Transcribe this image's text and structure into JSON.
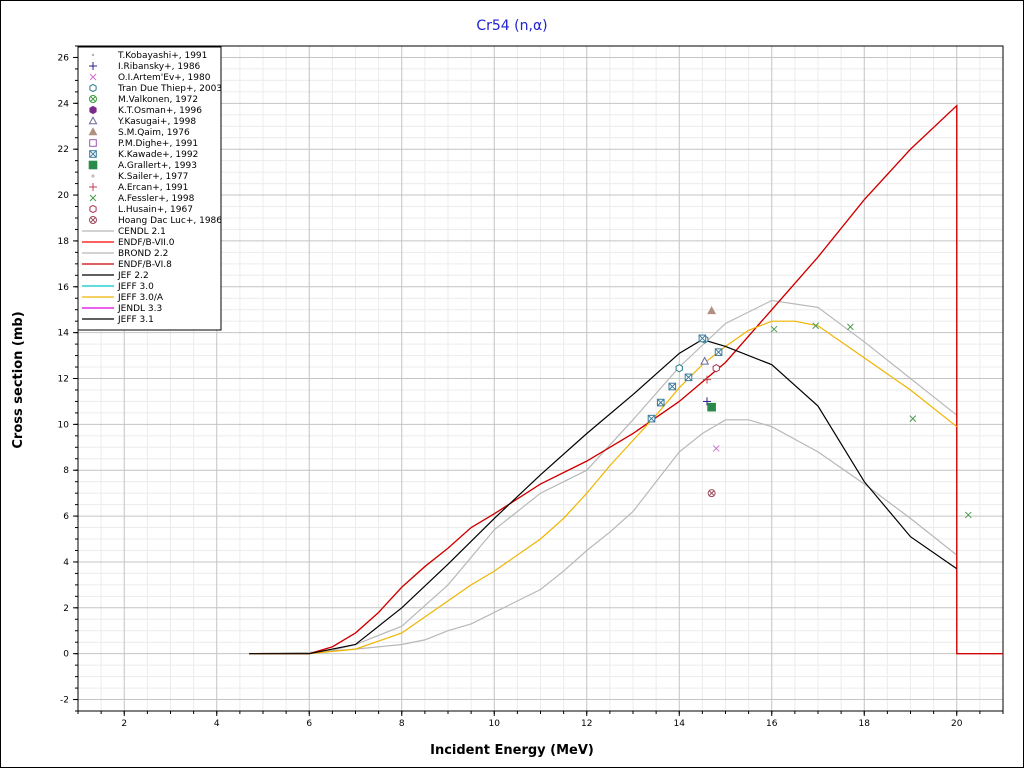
{
  "chart_data": {
    "type": "line",
    "title": "Cr54 (n,α)",
    "xlabel": "Incident Energy (MeV)",
    "ylabel": "Cross section (mb)",
    "xlim": [
      1,
      21
    ],
    "ylim": [
      -2.5,
      26.5
    ],
    "xticks": [
      2,
      4,
      6,
      8,
      10,
      12,
      14,
      16,
      18,
      20
    ],
    "yticks": [
      -2,
      0,
      2,
      4,
      6,
      8,
      10,
      12,
      14,
      16,
      18,
      20,
      22,
      24,
      26
    ],
    "grid": true,
    "legend_position": "top-left",
    "points": [
      {
        "name": "T.Kobayashi+, 1991",
        "marker": "dot",
        "color": "#b0b0b0",
        "data": []
      },
      {
        "name": "I.Ribansky+, 1986",
        "marker": "plus",
        "color": "#2a1f8c",
        "data": [
          [
            14.6,
            11.0
          ]
        ]
      },
      {
        "name": "O.I.Artem'Ev+, 1980",
        "marker": "x",
        "color": "#d070d0",
        "data": [
          [
            14.8,
            8.95
          ]
        ]
      },
      {
        "name": "Tran Due Thiep+, 2003",
        "marker": "hexagon",
        "color": "#2a7a8a",
        "data": [
          [
            14.0,
            12.45
          ],
          [
            14.55,
            13.7
          ]
        ]
      },
      {
        "name": "M.Valkonen, 1972",
        "marker": "circle-x",
        "color": "#3a9a3a",
        "data": []
      },
      {
        "name": "K.T.Osman+, 1996",
        "marker": "filled-hexagon",
        "color": "#7a2a8a",
        "data": []
      },
      {
        "name": "Y.Kasugai+, 1998",
        "marker": "triangle",
        "color": "#6a6a9a",
        "data": [
          [
            14.55,
            12.75
          ]
        ]
      },
      {
        "name": "S.M.Qaim, 1976",
        "marker": "filled-triangle",
        "color": "#b09080",
        "data": [
          [
            14.7,
            14.95
          ]
        ]
      },
      {
        "name": "P.M.Dighe+, 1991",
        "marker": "square",
        "color": "#9a5ab0",
        "data": []
      },
      {
        "name": "K.Kawade+, 1992",
        "marker": "square-x",
        "color": "#3a7a9a",
        "data": [
          [
            13.4,
            10.25
          ],
          [
            13.6,
            10.95
          ],
          [
            13.85,
            11.65
          ],
          [
            14.2,
            12.05
          ],
          [
            14.5,
            13.75
          ],
          [
            14.85,
            13.15
          ]
        ]
      },
      {
        "name": "A.Grallert+, 1993",
        "marker": "filled-square",
        "color": "#2a8a4a",
        "data": [
          [
            14.7,
            10.75
          ]
        ]
      },
      {
        "name": "K.Sailer+, 1977",
        "marker": "small-plus",
        "color": "#b0b0b0",
        "data": []
      },
      {
        "name": "A.Ercan+, 1991",
        "marker": "plus",
        "color": "#c04050",
        "data": [
          [
            14.6,
            11.95
          ]
        ]
      },
      {
        "name": "A.Fessler+, 1998",
        "marker": "x",
        "color": "#4a9a4a",
        "data": [
          [
            16.05,
            14.15
          ],
          [
            16.95,
            14.3
          ],
          [
            17.7,
            14.25
          ],
          [
            19.05,
            10.25
          ],
          [
            20.25,
            6.05
          ]
        ]
      },
      {
        "name": "L.Husain+, 1967",
        "marker": "hexagon",
        "color": "#b03050",
        "data": [
          [
            14.8,
            12.45
          ]
        ]
      },
      {
        "name": "Hoang Dac Luc+, 1986",
        "marker": "circle-x",
        "color": "#9a4a5a",
        "data": [
          [
            14.7,
            7.0
          ]
        ]
      }
    ],
    "series": [
      {
        "name": "CENDL 2.1",
        "color": "#b8b8b8",
        "x": [
          4.7,
          6.0,
          6.5,
          7.0,
          8.0,
          9.0,
          10.0,
          11.0,
          12.0,
          13.0,
          14.0,
          15.0,
          16.0,
          17.0,
          18.0,
          19.0,
          20.0
        ],
        "y": [
          0.0,
          0.05,
          0.15,
          0.4,
          1.2,
          3.0,
          5.4,
          7.0,
          8.0,
          10.2,
          12.5,
          14.4,
          15.4,
          15.1,
          13.6,
          12.0,
          10.4
        ]
      },
      {
        "name": "ENDF/B-VII.0",
        "color": "#ff0000",
        "x": [
          4.7,
          6.0,
          6.5,
          7.0,
          7.5,
          8.0,
          8.5,
          9.0,
          9.5,
          10.0,
          11.0,
          12.0,
          13.0,
          14.0,
          15.0,
          16.0,
          17.0,
          18.0,
          19.0,
          20.0,
          20.0,
          21.0
        ],
        "y": [
          0.0,
          0.0,
          0.3,
          0.9,
          1.8,
          2.9,
          3.8,
          4.6,
          5.5,
          6.1,
          7.4,
          8.4,
          9.6,
          11.0,
          12.7,
          15.0,
          17.3,
          19.8,
          22.0,
          23.9,
          0.0,
          0.0
        ]
      },
      {
        "name": "BROND 2.2",
        "color": "#b8b8b8",
        "x": [
          4.7,
          6.0,
          7.0,
          8.0,
          8.5,
          9.0,
          9.5,
          10.0,
          11.0,
          11.5,
          12.0,
          12.5,
          13.0,
          13.5,
          14.0,
          14.5,
          15.0,
          15.5,
          16.0,
          17.0,
          18.0,
          19.0,
          20.0
        ],
        "y": [
          0.0,
          0.05,
          0.2,
          0.4,
          0.6,
          1.0,
          1.3,
          1.8,
          2.8,
          3.6,
          4.5,
          5.3,
          6.2,
          7.5,
          8.8,
          9.6,
          10.2,
          10.2,
          9.9,
          8.8,
          7.4,
          5.9,
          4.3
        ]
      },
      {
        "name": "ENDF/B-VI.8",
        "color": "#cc0000",
        "x": [
          4.7,
          6.0,
          6.5,
          7.0,
          7.5,
          8.0,
          8.5,
          9.0,
          9.5,
          10.0,
          11.0,
          12.0,
          13.0,
          14.0,
          15.0,
          16.0,
          17.0,
          18.0,
          19.0,
          20.0,
          20.0,
          21.0
        ],
        "y": [
          0.0,
          0.0,
          0.3,
          0.9,
          1.8,
          2.9,
          3.8,
          4.6,
          5.5,
          6.1,
          7.4,
          8.4,
          9.6,
          11.0,
          12.7,
          15.0,
          17.3,
          19.8,
          22.0,
          23.9,
          0.0,
          0.0
        ]
      },
      {
        "name": "JEF 2.2",
        "color": "#000000",
        "x": [],
        "y": []
      },
      {
        "name": "JEFF 3.0",
        "color": "#00c8c8",
        "x": [],
        "y": []
      },
      {
        "name": "JEFF 3.0/A",
        "color": "#f0b400",
        "x": [
          4.7,
          6.0,
          7.0,
          8.0,
          9.0,
          9.5,
          10.0,
          11.0,
          11.5,
          12.0,
          12.5,
          13.0,
          13.5,
          14.0,
          14.5,
          15.0,
          15.5,
          16.0,
          16.5,
          17.0,
          18.0,
          19.0,
          20.0
        ],
        "y": [
          0.0,
          0.0,
          0.2,
          0.9,
          2.3,
          3.0,
          3.6,
          5.0,
          5.9,
          7.0,
          8.2,
          9.3,
          10.4,
          11.6,
          12.6,
          13.4,
          14.1,
          14.5,
          14.5,
          14.3,
          12.9,
          11.5,
          9.9
        ]
      },
      {
        "name": "JENDL 3.3",
        "color": "#e000e0",
        "x": [],
        "y": []
      },
      {
        "name": "JEFF 3.1",
        "color": "#000000",
        "x": [
          4.7,
          6.0,
          7.0,
          8.0,
          9.0,
          10.0,
          11.0,
          12.0,
          13.0,
          14.0,
          14.5,
          15.0,
          16.0,
          17.0,
          18.0,
          19.0,
          20.0
        ],
        "y": [
          0.0,
          0.0,
          0.4,
          2.0,
          3.9,
          5.9,
          7.8,
          9.6,
          11.3,
          13.1,
          13.7,
          13.4,
          12.6,
          10.8,
          7.5,
          5.1,
          3.7
        ]
      }
    ]
  }
}
